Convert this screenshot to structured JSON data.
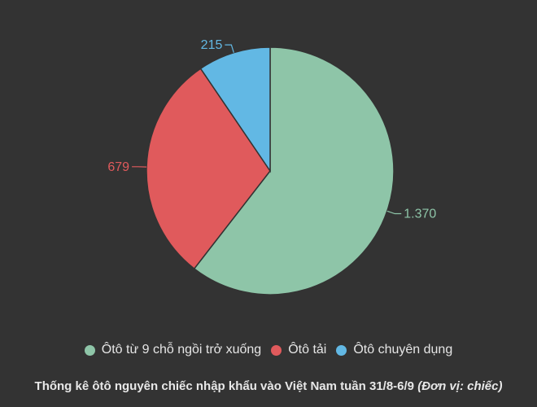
{
  "chart_data": {
    "type": "pie",
    "series": [
      {
        "name": "Ôtô từ 9 chỗ ngồi trở xuống",
        "value": 1370,
        "label": "1.370",
        "color": "#8ec5a8"
      },
      {
        "name": "Ôtô tải",
        "value": 679,
        "label": "679",
        "color": "#e05a5c"
      },
      {
        "name": "Ôtô chuyên dụng",
        "value": 215,
        "label": "215",
        "color": "#62b8e4"
      }
    ],
    "legend_position": "bottom"
  },
  "caption": {
    "text": "Thống kê ôtô nguyên chiếc nhập khẩu vào Việt Nam tuần 31/8-6/9",
    "unit": "(Đơn vị: chiếc)"
  },
  "colors": {
    "background": "#333333"
  }
}
